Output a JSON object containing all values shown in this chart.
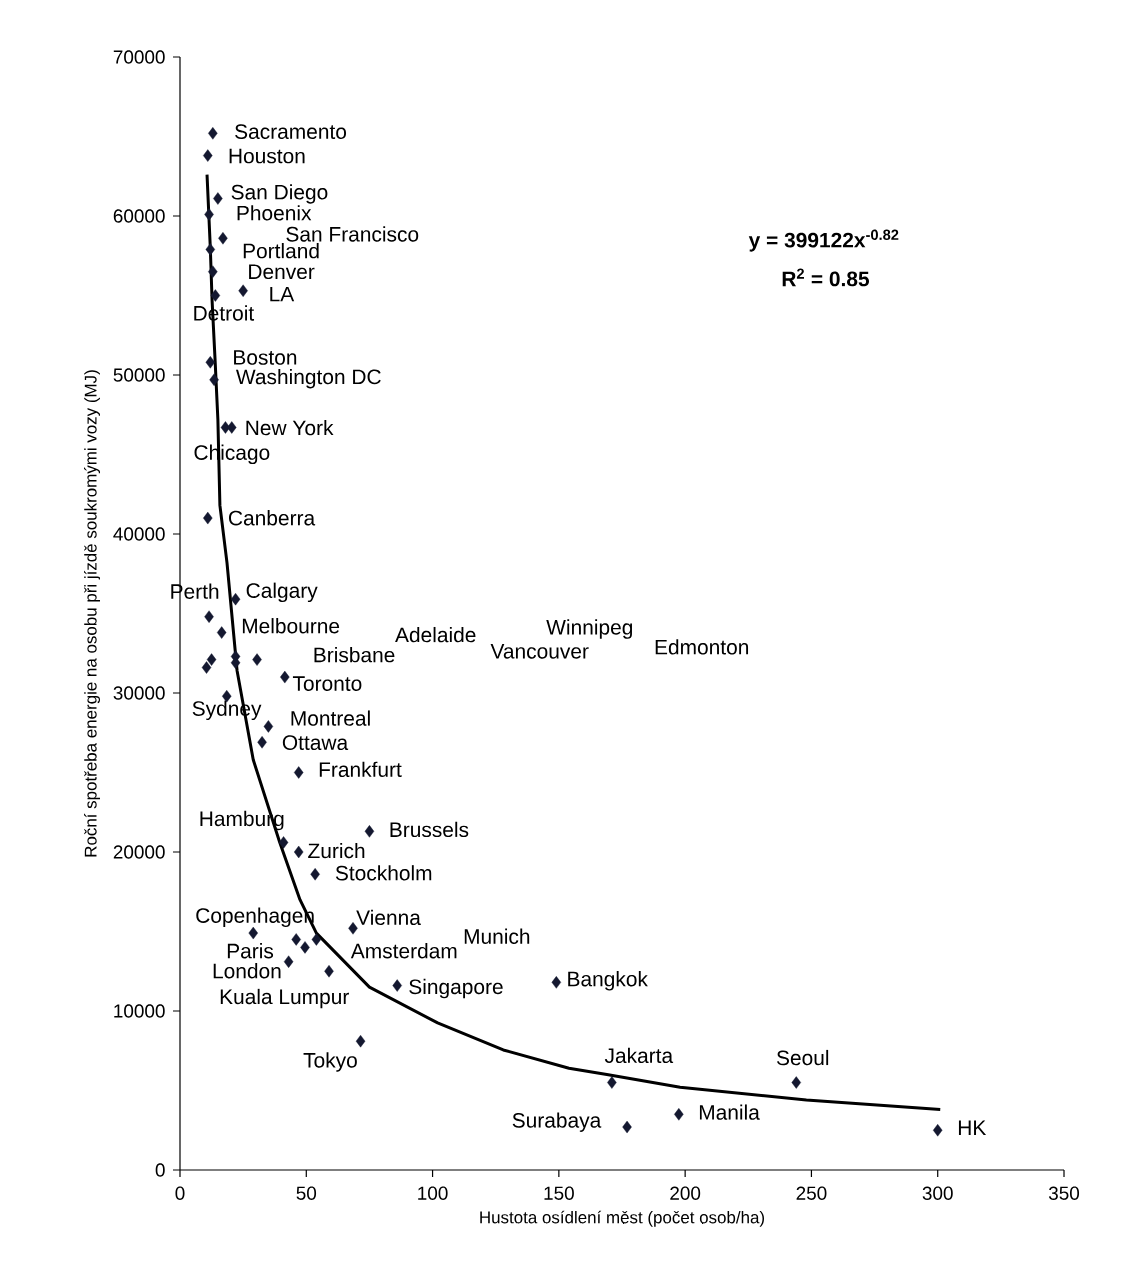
{
  "chart_data": {
    "type": "scatter",
    "xlabel": "Hustota osídlení měst (počet osob/ha)",
    "ylabel": "Roční spotřeba energie na osobu při jízdě soukromými vozy (MJ)",
    "xlim": [
      0,
      350
    ],
    "ylim": [
      0,
      70000
    ],
    "xticks": [
      0,
      50,
      100,
      150,
      200,
      250,
      300,
      350
    ],
    "yticks": [
      0,
      10000,
      20000,
      30000,
      40000,
      50000,
      60000,
      70000
    ],
    "marker": "diamond",
    "grid": false,
    "series": [
      {
        "color": "#141830",
        "x": [
          13,
          11,
          15,
          11.5,
          17,
          12,
          13,
          25,
          14,
          12,
          13.5,
          18,
          20.5,
          11,
          22,
          11.5,
          16.5,
          12.5,
          10.5,
          22,
          22,
          30.5,
          41.5,
          18.5,
          35,
          32.5,
          47,
          41,
          47,
          75,
          53.5,
          29,
          46,
          49.5,
          54,
          68.5,
          43,
          59,
          86,
          71.5,
          149,
          171,
          177,
          197.5,
          244,
          300
        ],
        "values": [
          65200,
          63800,
          61100,
          60100,
          58600,
          57900,
          56500,
          55300,
          55000,
          50800,
          49700,
          46700,
          46700,
          41000,
          35900,
          34800,
          33800,
          32100,
          31600,
          32300,
          31900,
          32100,
          31000,
          29800,
          27900,
          26900,
          25000,
          20600,
          20000,
          21300,
          18600,
          14900,
          14500,
          14000,
          14500,
          15200,
          13100,
          12500,
          11600,
          8100,
          11800,
          5500,
          2700,
          3500,
          5500,
          2500
        ]
      },
      {
        "type": "line",
        "color": "#000000",
        "marker": "none",
        "x": [
          10.7,
          12.0,
          12.7,
          13.9,
          15,
          15.8,
          18.6,
          22.6,
          29,
          39.5,
          47.5,
          54,
          75,
          102,
          128,
          154,
          169,
          198,
          248,
          301
        ],
        "values": [
          62600,
          58000,
          54700,
          50900,
          47200,
          41800,
          38200,
          31400,
          25800,
          20600,
          17000,
          14900,
          11500,
          9250,
          7550,
          6400,
          6000,
          5200,
          4400,
          3800
        ]
      }
    ],
    "annotations": [
      "y = 399122x$^{-0.82}$",
      "R$^{2}$ = 0.85",
      "Sacramento",
      "Houston",
      "San Diego",
      "Phoenix",
      "San Francisco",
      "Portland",
      "Denver",
      "LA",
      "Detroit",
      "Boston",
      "Washington DC",
      "New York",
      "Chicago",
      "Canberra",
      "Perth",
      "Calgary",
      "Melbourne",
      "Adelaide",
      "Winnipeg",
      "Vancouver",
      "Edmonton",
      "Brisbane",
      "Toronto",
      "Sydney",
      "Montreal",
      "Ottawa",
      "Frankfurt",
      "Hamburg",
      "Brussels",
      "Zurich",
      "Stockholm",
      "Copenhagen",
      "Vienna",
      "Munich",
      "Paris",
      "Amsterdam",
      "London",
      "Bangkok",
      "Singapore",
      "Kuala Lumpur",
      "Tokyo",
      "Jakarta",
      "Seoul",
      "Manila",
      "Surabaya",
      "HK"
    ]
  }
}
